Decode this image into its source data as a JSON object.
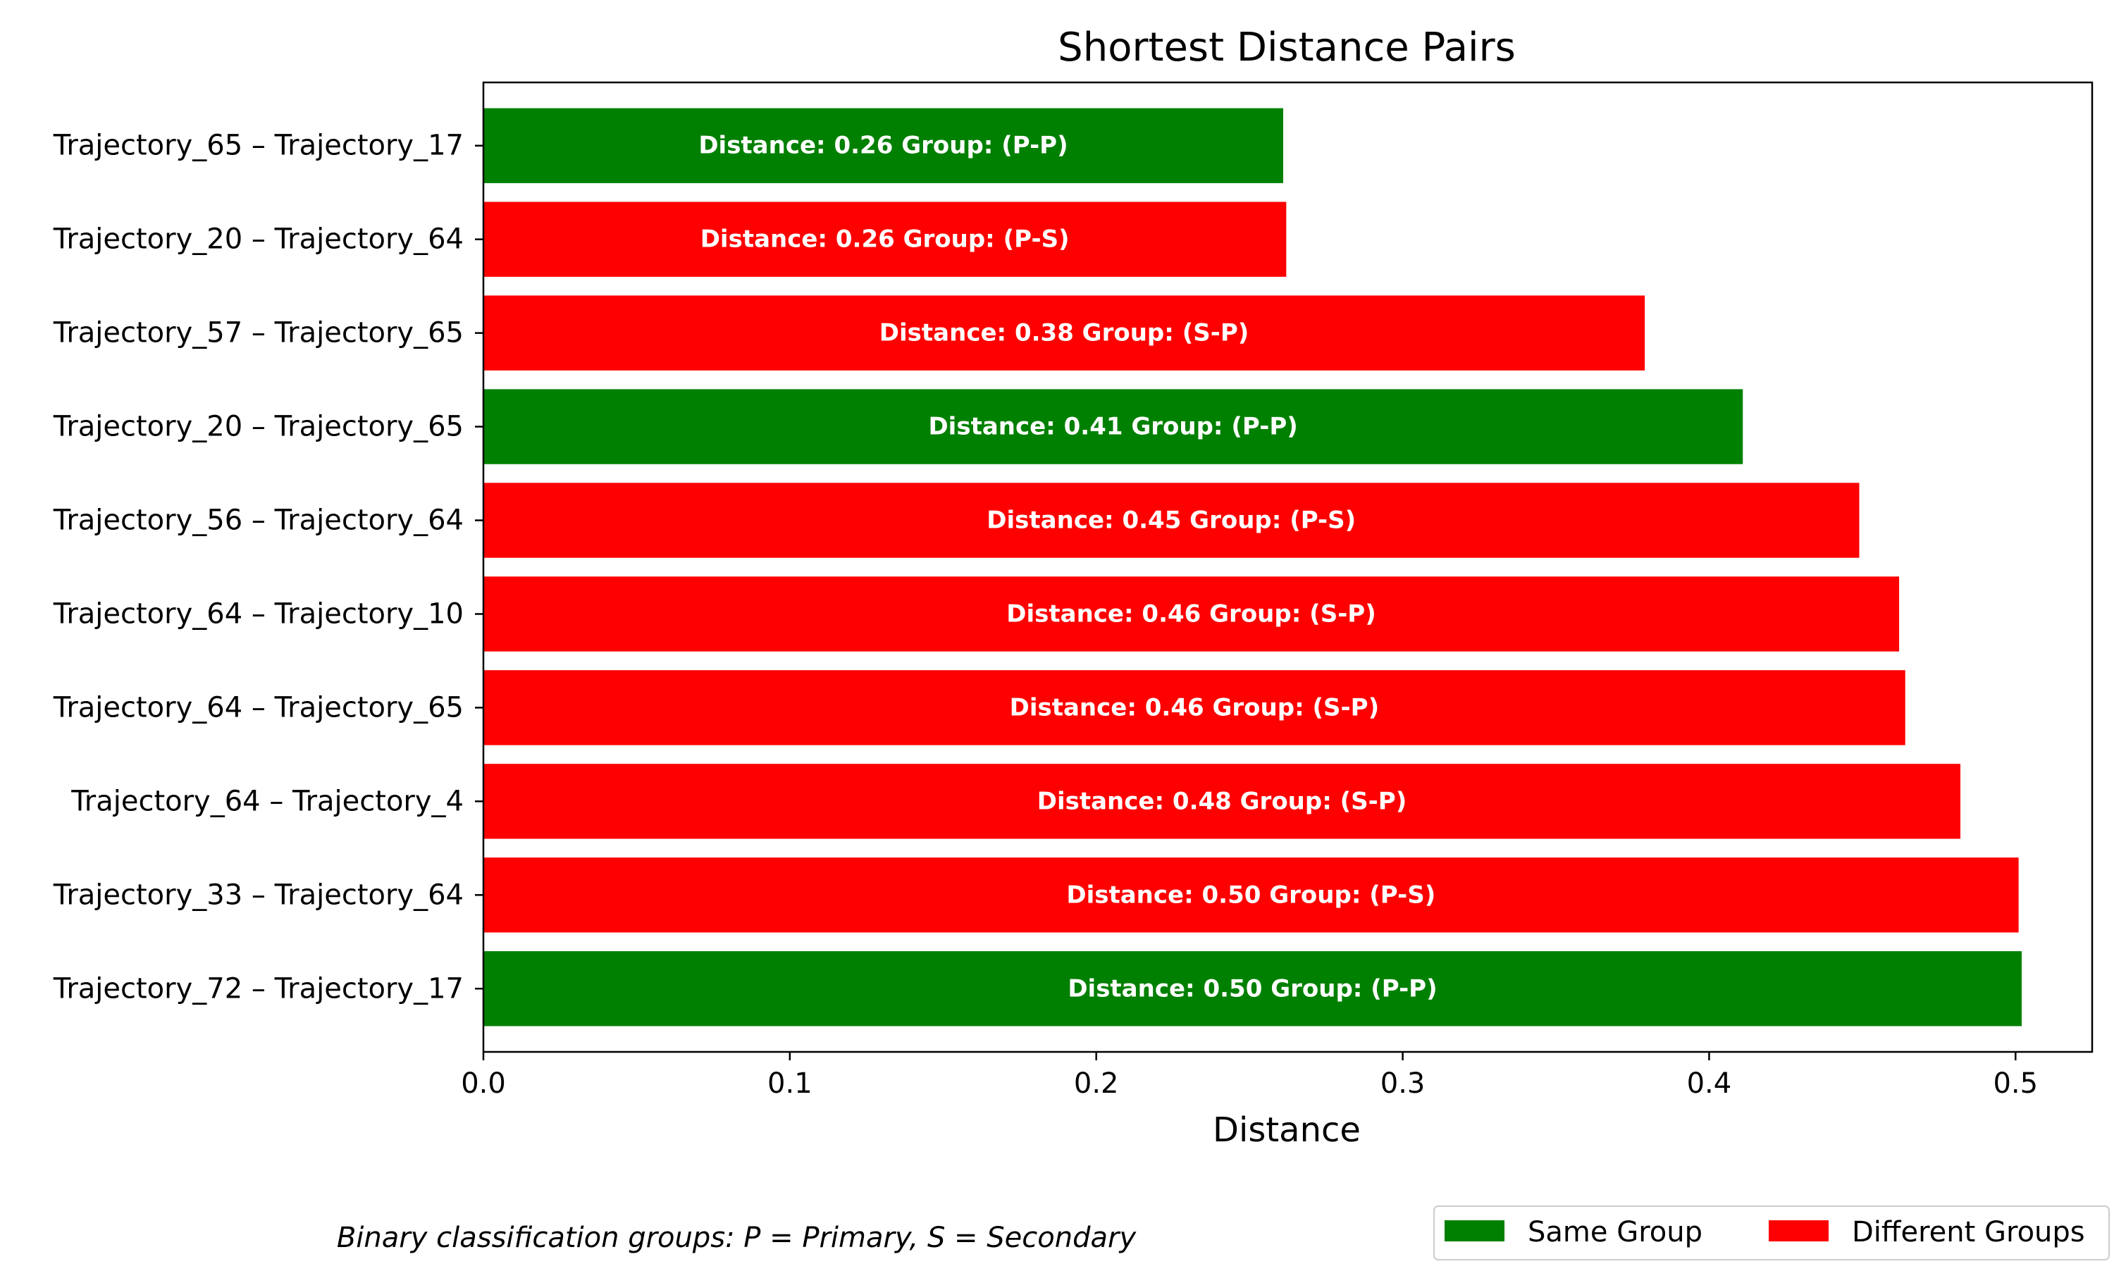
{
  "chart_data": {
    "type": "bar",
    "orientation": "horizontal",
    "title": "Shortest Distance Pairs",
    "xlabel": "Distance",
    "ylabel": "",
    "xlim": [
      0,
      0.525
    ],
    "xticks": [
      "0.0",
      "0.1",
      "0.2",
      "0.3",
      "0.4",
      "0.5"
    ],
    "xtick_values": [
      0.0,
      0.1,
      0.2,
      0.3,
      0.4,
      0.5
    ],
    "grid": false,
    "categories": [
      "Trajectory_65 – Trajectory_17",
      "Trajectory_20 – Trajectory_64",
      "Trajectory_57 – Trajectory_65",
      "Trajectory_20 – Trajectory_65",
      "Trajectory_56 – Trajectory_64",
      "Trajectory_64 – Trajectory_10",
      "Trajectory_64 – Trajectory_65",
      "Trajectory_64 – Trajectory_4",
      "Trajectory_33 – Trajectory_64",
      "Trajectory_72 – Trajectory_17"
    ],
    "values": [
      0.261,
      0.262,
      0.379,
      0.411,
      0.449,
      0.462,
      0.464,
      0.482,
      0.501,
      0.502
    ],
    "bar_labels": [
      "Distance: 0.26 Group: (P-P)",
      "Distance: 0.26 Group: (P-S)",
      "Distance: 0.38 Group: (S-P)",
      "Distance: 0.41 Group: (P-P)",
      "Distance: 0.45 Group: (P-S)",
      "Distance: 0.46 Group: (S-P)",
      "Distance: 0.46 Group: (S-P)",
      "Distance: 0.48 Group: (S-P)",
      "Distance: 0.50 Group: (P-S)",
      "Distance: 0.50 Group: (P-P)"
    ],
    "groups": [
      "same",
      "different",
      "different",
      "same",
      "different",
      "different",
      "different",
      "different",
      "different",
      "same"
    ],
    "colors": {
      "same": "#008000",
      "different": "#ff0000"
    },
    "legend": {
      "placement": "bottom-right",
      "entries": [
        {
          "key": "same",
          "label": "Same Group"
        },
        {
          "key": "different",
          "label": "Different Groups"
        }
      ]
    },
    "footnote": "Binary classification groups: P = Primary, S = Secondary"
  }
}
